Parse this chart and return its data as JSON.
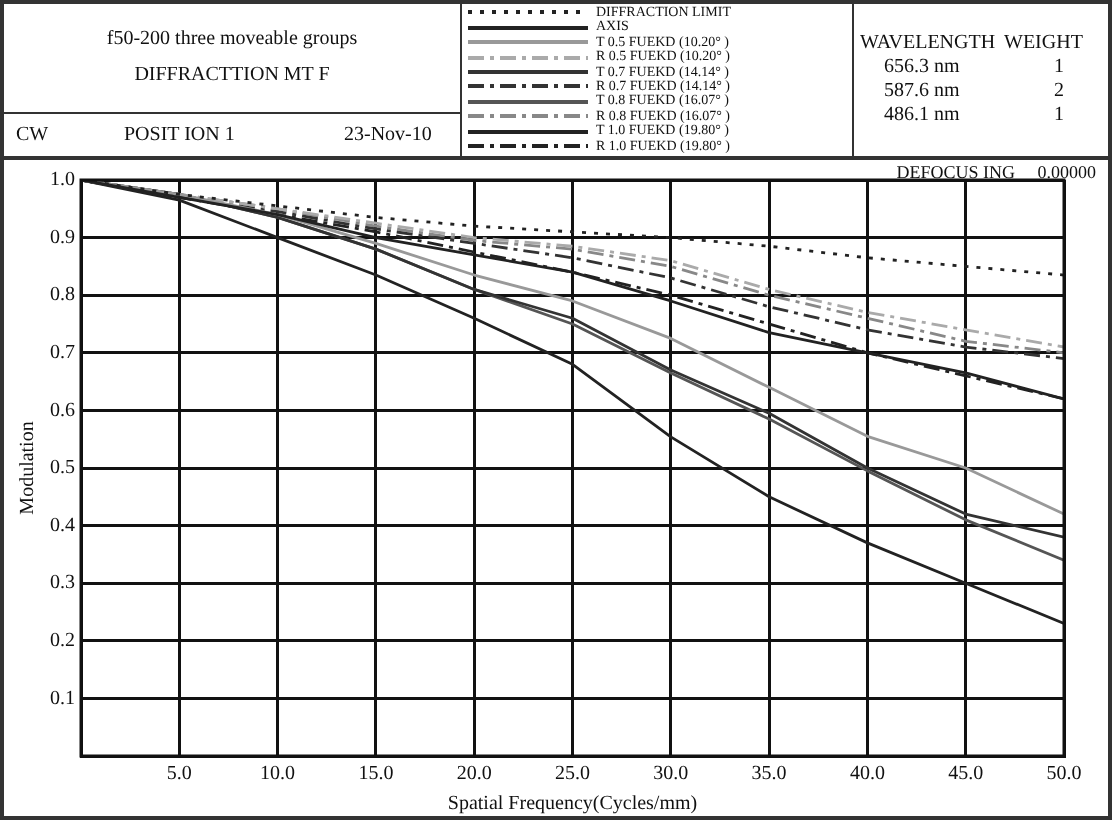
{
  "chart_data": {
    "type": "line",
    "title": "f50-200 three moveable groups",
    "subtitle": "DIFFRACTTION MT F",
    "xlabel": "Spatial Frequency(Cycles/mm)",
    "ylabel": "Modulation",
    "annotations": [
      "CW",
      "POSIT ION 1",
      "23-Nov-10",
      "WAVELENGTH",
      "WEIGHT",
      "656.3 nm",
      "1",
      "587.6 nm",
      "2",
      "486.1 nm",
      "1",
      "DEFOCUS ING",
      "0.00000"
    ],
    "x": [
      0,
      5,
      10,
      15,
      20,
      25,
      30,
      35,
      40,
      45,
      50
    ],
    "series": [
      {
        "name": "DIFFRACTION LIMIT",
        "color": "#222222",
        "line_style": "dotted",
        "values": [
          1,
          0.975,
          0.955,
          0.935,
          0.92,
          0.91,
          0.9,
          0.885,
          0.865,
          0.85,
          0.835
        ]
      },
      {
        "name": "AXIS",
        "color": "#222222",
        "line_style": "solid",
        "values": [
          1,
          0.97,
          0.94,
          0.9,
          0.87,
          0.84,
          0.79,
          0.735,
          0.7,
          0.665,
          0.62
        ]
      },
      {
        "name": "T 0.5 FUEKD (10.20° )",
        "color": "#999999",
        "line_style": "solid",
        "values": [
          1,
          0.975,
          0.94,
          0.89,
          0.835,
          0.79,
          0.725,
          0.64,
          0.555,
          0.5,
          0.42
        ]
      },
      {
        "name": "R 0.5 FUEKD (10.20° )",
        "color": "#aaaaaa",
        "line_style": "dashed",
        "values": [
          1,
          0.975,
          0.95,
          0.925,
          0.9,
          0.885,
          0.86,
          0.81,
          0.77,
          0.74,
          0.71
        ]
      },
      {
        "name": "T 0.7 FUEKD (14.14° )",
        "color": "#333333",
        "line_style": "solid",
        "values": [
          1,
          0.975,
          0.935,
          0.88,
          0.81,
          0.76,
          0.67,
          0.595,
          0.5,
          0.42,
          0.38
        ]
      },
      {
        "name": "R 0.7 FUEKD (14.14° )",
        "color": "#333333",
        "line_style": "dashed",
        "values": [
          1,
          0.97,
          0.945,
          0.915,
          0.89,
          0.865,
          0.83,
          0.78,
          0.74,
          0.71,
          0.69
        ]
      },
      {
        "name": "T 0.8 FUEKD (16.07° )",
        "color": "#555555",
        "line_style": "solid",
        "values": [
          1,
          0.975,
          0.935,
          0.88,
          0.81,
          0.75,
          0.665,
          0.585,
          0.495,
          0.41,
          0.34
        ]
      },
      {
        "name": "R 0.8 FUEKD (16.07° )",
        "color": "#888888",
        "line_style": "dashed",
        "values": [
          1,
          0.975,
          0.95,
          0.92,
          0.895,
          0.88,
          0.85,
          0.8,
          0.76,
          0.72,
          0.7
        ]
      },
      {
        "name": "T 1.0 FUEKD (19.80° )",
        "color": "#222222",
        "line_style": "solid",
        "values": [
          1,
          0.965,
          0.9,
          0.835,
          0.76,
          0.68,
          0.554,
          0.45,
          0.37,
          0.3,
          0.23
        ]
      },
      {
        "name": "R 1.0 FUEKD (19.80° )",
        "color": "#222222",
        "line_style": "dashed",
        "values": [
          1,
          0.97,
          0.94,
          0.91,
          0.875,
          0.84,
          0.8,
          0.75,
          0.7,
          0.66,
          0.62
        ]
      }
    ],
    "xlim": [
      0,
      50
    ],
    "xticks": [
      {
        "value": 5,
        "label": "5.0"
      },
      {
        "value": 10,
        "label": "10.0"
      },
      {
        "value": 15,
        "label": "15.0"
      },
      {
        "value": 20,
        "label": "20.0"
      },
      {
        "value": 25,
        "label": "25.0"
      },
      {
        "value": 30,
        "label": "30.0"
      },
      {
        "value": 35,
        "label": "35.0"
      },
      {
        "value": 40,
        "label": "40.0"
      },
      {
        "value": 45,
        "label": "45.0"
      },
      {
        "value": 50,
        "label": "50.0"
      }
    ],
    "ylim": [
      0,
      1
    ],
    "yticks": [
      0.1,
      0.2,
      0.3,
      0.4,
      0.5,
      0.6,
      0.7,
      0.8,
      0.9,
      {
        "value": 1,
        "label": "1.0"
      }
    ],
    "grid": true,
    "legend": "top",
    "marker": "none"
  }
}
